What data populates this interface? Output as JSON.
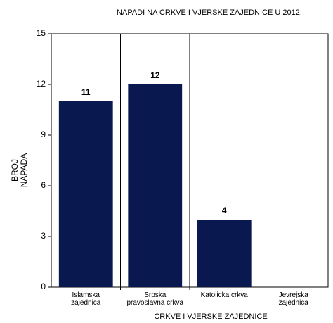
{
  "chart_data": {
    "type": "bar",
    "title": "NAPADI NA CRKVE I VJERSKE ZAJEDNICE U 2012.",
    "y_label": "BROJ\nNAPADA",
    "x_label": "CRKVE I VJERSKE ZAJEDNICE",
    "categories": [
      "Islamska\nzajednica",
      "Srpska\npravoslavna crkva",
      "Katolicka crkva",
      "Jevrejska\nzajednica"
    ],
    "values": [
      11,
      12,
      4,
      0
    ],
    "color": "#0a1850",
    "ylim": [
      0,
      15
    ],
    "yticks": [
      0,
      3,
      6,
      9,
      12,
      15
    ],
    "x_grid": true
  }
}
